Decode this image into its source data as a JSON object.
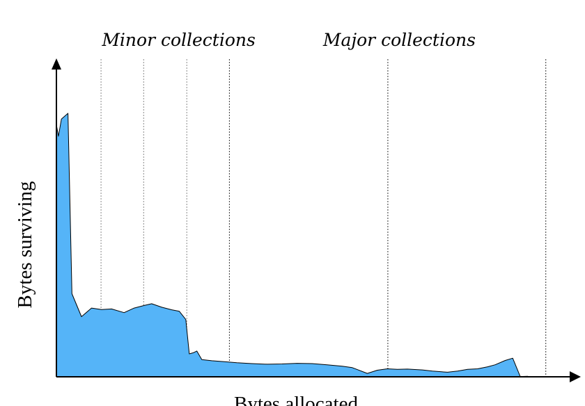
{
  "chart_data": {
    "type": "area",
    "title": "",
    "xlabel": "Bytes allocated",
    "ylabel": "Bytes surviving",
    "xlim": [
      0,
      100
    ],
    "ylim": [
      0,
      100
    ],
    "grid": false,
    "colors": {
      "fill": "#55b4f8",
      "stroke": "#000000",
      "minor_line": "#888888",
      "major_line": "#333333"
    },
    "annotations": [
      {
        "text": "Minor collections",
        "x": 13
      },
      {
        "text": "Major collections",
        "x": 57
      }
    ],
    "collection_lines": {
      "minor": [
        8.9,
        17.4,
        26.0
      ],
      "major": [
        34.5,
        66.1,
        97.6
      ]
    },
    "series": [
      {
        "x": [
          0,
          0.4,
          1.0,
          2.3,
          3.1,
          5.0,
          7.0,
          9.0,
          11.0,
          13.5,
          15.5,
          17.5,
          19.0,
          21.0,
          23.0,
          24.5,
          25.8,
          26.5,
          27.3,
          28.0,
          29.0,
          31.0,
          33.5,
          36.0,
          39.0,
          42.0,
          45.0,
          48.0,
          51.0,
          54.0,
          57.0,
          59.0,
          62.0,
          64.0,
          66.0,
          68.0,
          70.0,
          73.0,
          75.0,
          78.0,
          80.0,
          82.0,
          84.0,
          86.0,
          87.5,
          89.5,
          91.0,
          92.5,
          94.0
        ],
        "y": [
          88,
          84,
          90,
          92,
          29,
          21,
          24,
          23.5,
          23.7,
          22.4,
          24,
          24.9,
          25.5,
          24.3,
          23.4,
          22.9,
          20,
          8,
          8.4,
          9,
          6,
          5.6,
          5.3,
          4.9,
          4.6,
          4.4,
          4.5,
          4.7,
          4.6,
          4.2,
          3.7,
          3.2,
          1.2,
          2.3,
          2.8,
          2.6,
          2.7,
          2.4,
          2.0,
          1.6,
          2.0,
          2.6,
          2.8,
          3.5,
          4.2,
          5.7,
          6.5,
          0.1,
          0.2
        ]
      }
    ]
  }
}
